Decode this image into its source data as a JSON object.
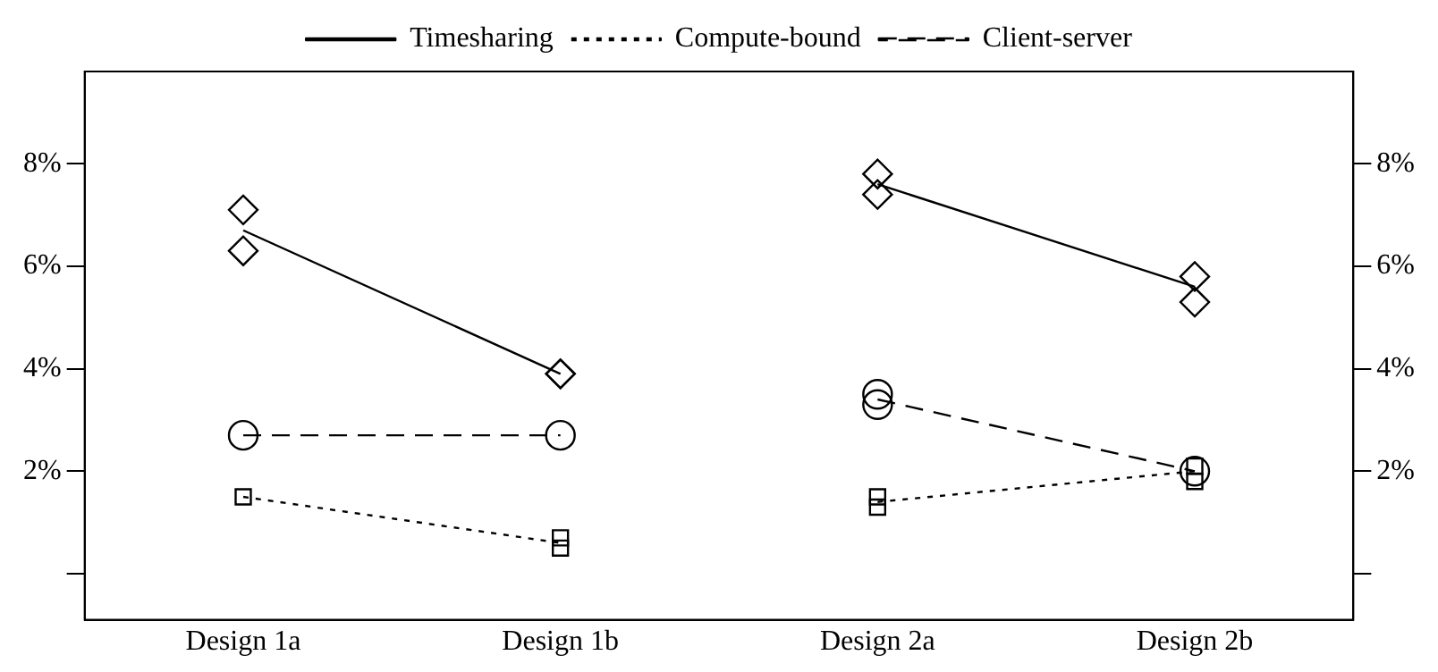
{
  "chart_data": {
    "type": "line",
    "categories": [
      "Design 1a",
      "Design 1b",
      "Design 2a",
      "Design 2b"
    ],
    "ylim": [
      -0.9,
      9.8
    ],
    "yticks": [
      {
        "value": 0,
        "label": null
      },
      {
        "value": 2,
        "label": "2%"
      },
      {
        "value": 4,
        "label": "4%"
      },
      {
        "value": 6,
        "label": "6%"
      },
      {
        "value": 8,
        "label": "8%"
      }
    ],
    "y2lim": [
      -0.9,
      9.8
    ],
    "y2ticks": [
      {
        "value": 0,
        "label": null
      },
      {
        "value": 2,
        "label": "2%"
      },
      {
        "value": 4,
        "label": "4%"
      },
      {
        "value": 6,
        "label": "6%"
      },
      {
        "value": 8,
        "label": "8%"
      }
    ],
    "grid": false,
    "legend": "top",
    "series": [
      {
        "name": "Timesharing",
        "line_style": "solid",
        "marker": "none",
        "color": "#000000",
        "values": [
          6.7,
          3.9,
          null,
          null
        ]
      },
      {
        "name": "Compute-bound",
        "line_style": "dotted",
        "marker": "none",
        "color": "#000000",
        "values": [
          1.5,
          0.6,
          null,
          null
        ]
      },
      {
        "name": "Client-server",
        "line_style": "dashed",
        "marker": "none",
        "color": "#000000",
        "values": [
          2.7,
          2.7,
          null,
          null
        ]
      },
      {
        "line_style": "solid",
        "color": "#000000",
        "values": [
          null,
          null,
          7.6,
          5.6
        ]
      },
      {
        "line_style": "dotted",
        "color": "#000000",
        "values": [
          null,
          null,
          1.4,
          2.0
        ]
      },
      {
        "line_style": "dashed",
        "color": "#000000",
        "values": [
          null,
          null,
          3.4,
          2.0
        ]
      },
      {
        "type": "scatter",
        "marker": "diamond",
        "color": "#000000",
        "x": [
          "Design 1a",
          "Design 1a",
          "Design 1b",
          "Design 1b",
          "Design 2a",
          "Design 2a",
          "Design 2b",
          "Design 2b"
        ],
        "values": [
          7.1,
          6.3,
          3.9,
          3.9,
          7.8,
          7.4,
          5.8,
          5.3
        ]
      },
      {
        "type": "scatter",
        "marker": "square",
        "color": "#000000",
        "x": [
          "Design 1a",
          "Design 1b",
          "Design 1b",
          "Design 2a",
          "Design 2a",
          "Design 2b",
          "Design 2b"
        ],
        "values": [
          1.5,
          0.7,
          0.5,
          1.5,
          1.3,
          2.1,
          1.8
        ]
      },
      {
        "type": "scatter",
        "marker": "circle",
        "color": "#000000",
        "x": [
          "Design 1a",
          "Design 1b",
          "Design 2a",
          "Design 2a",
          "Design 2b"
        ],
        "values": [
          2.7,
          2.7,
          3.5,
          3.3,
          2.0
        ]
      }
    ]
  }
}
